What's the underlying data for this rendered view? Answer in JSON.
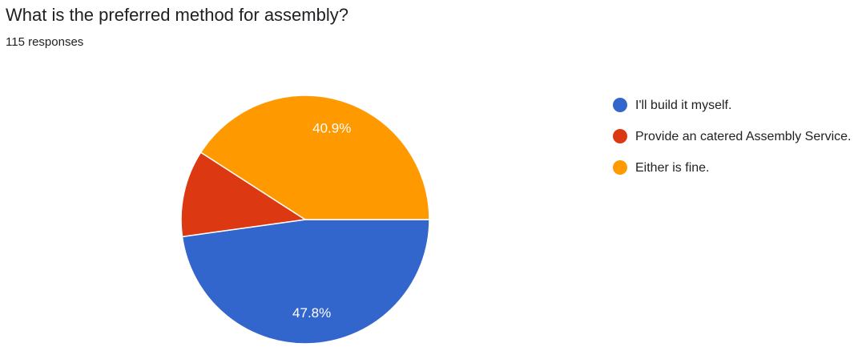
{
  "chart_data": {
    "type": "pie",
    "title": "What is the preferred method for assembly?",
    "subtitle": "115 responses",
    "categories": [
      "I'll build it myself.",
      "Provide an catered Assembly Service.",
      "Either is fine."
    ],
    "values": [
      47.8,
      11.3,
      40.9
    ],
    "value_labels": [
      "47.8%",
      null,
      "40.9%"
    ],
    "colors": [
      "#3366cc",
      "#dc3912",
      "#ff9900"
    ],
    "legend": "right"
  }
}
